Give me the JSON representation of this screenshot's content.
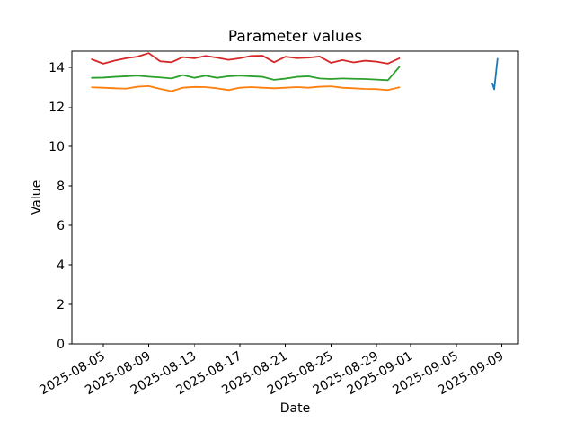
{
  "chart_data": {
    "type": "line",
    "title": "Parameter values",
    "xlabel": "Date",
    "ylabel": "Value",
    "background": "#ffffff",
    "text_color": "#000000",
    "axis_color": "#000000",
    "grid": false,
    "legend": false,
    "xlim": [
      "2025-08-02T06:00",
      "2025-09-10T11:00"
    ],
    "ylim": [
      0,
      14.83
    ],
    "x_ticks": [
      "2025-08-05",
      "2025-08-09",
      "2025-08-13",
      "2025-08-17",
      "2025-08-21",
      "2025-08-25",
      "2025-08-29",
      "2025-09-01",
      "2025-09-05",
      "2025-09-09"
    ],
    "y_ticks": [
      0,
      2,
      4,
      6,
      8,
      10,
      12,
      14
    ],
    "series": [
      {
        "name": "series-red",
        "color": "#d62728",
        "x_start": "2025-08-04",
        "x_step_days": 1,
        "values": [
          14.42,
          14.2,
          14.35,
          14.47,
          14.55,
          14.73,
          14.32,
          14.27,
          14.53,
          14.47,
          14.59,
          14.5,
          14.39,
          14.47,
          14.59,
          14.6,
          14.27,
          14.55,
          14.48,
          14.5,
          14.56,
          14.24,
          14.38,
          14.26,
          14.35,
          14.3,
          14.2,
          14.47
        ]
      },
      {
        "name": "series-green",
        "color": "#2ca02c",
        "x_start": "2025-08-04",
        "x_step_days": 1,
        "values": [
          13.48,
          13.49,
          13.53,
          13.56,
          13.59,
          13.54,
          13.5,
          13.45,
          13.62,
          13.48,
          13.59,
          13.48,
          13.56,
          13.59,
          13.56,
          13.53,
          13.38,
          13.44,
          13.53,
          13.56,
          13.45,
          13.42,
          13.45,
          13.43,
          13.42,
          13.39,
          13.36,
          14.03
        ]
      },
      {
        "name": "series-orange",
        "color": "#ff7f0e",
        "x_start": "2025-08-04",
        "x_step_days": 1,
        "values": [
          13.0,
          12.98,
          12.95,
          12.93,
          13.03,
          13.06,
          12.92,
          12.8,
          12.98,
          13.02,
          13.01,
          12.95,
          12.86,
          12.98,
          13.01,
          12.98,
          12.95,
          12.98,
          13.01,
          12.98,
          13.03,
          13.05,
          12.98,
          12.95,
          12.92,
          12.91,
          12.86,
          13.0
        ]
      },
      {
        "name": "series-blue",
        "color": "#1f77b4",
        "x": [
          "2025-09-08T04:00",
          "2025-09-08T08:00",
          "2025-09-08T15:00"
        ],
        "values": [
          13.2,
          12.9,
          14.45
        ]
      }
    ]
  }
}
